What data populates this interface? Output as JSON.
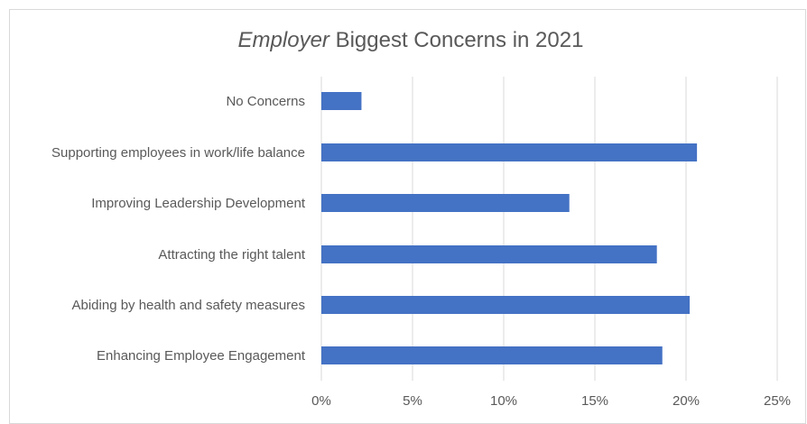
{
  "chart_data": {
    "type": "bar",
    "orientation": "horizontal",
    "title_italic": "Employer",
    "title_rest": " Biggest Concerns in 2021",
    "categories": [
      "No Concerns",
      "Supporting employees in work/life balance",
      "Improving Leadership Development",
      "Attracting the right talent",
      "Abiding by health and safety measures",
      "Enhancing Employee Engagement"
    ],
    "values": [
      2.2,
      20.6,
      13.6,
      18.4,
      20.2,
      18.7
    ],
    "xlim": [
      0,
      25
    ],
    "xticks": [
      0,
      5,
      10,
      15,
      20,
      25
    ],
    "xtick_labels": [
      "0%",
      "5%",
      "10%",
      "15%",
      "20%",
      "25%"
    ],
    "grid": true,
    "legend": "none",
    "bar_color": "#4472c4"
  }
}
